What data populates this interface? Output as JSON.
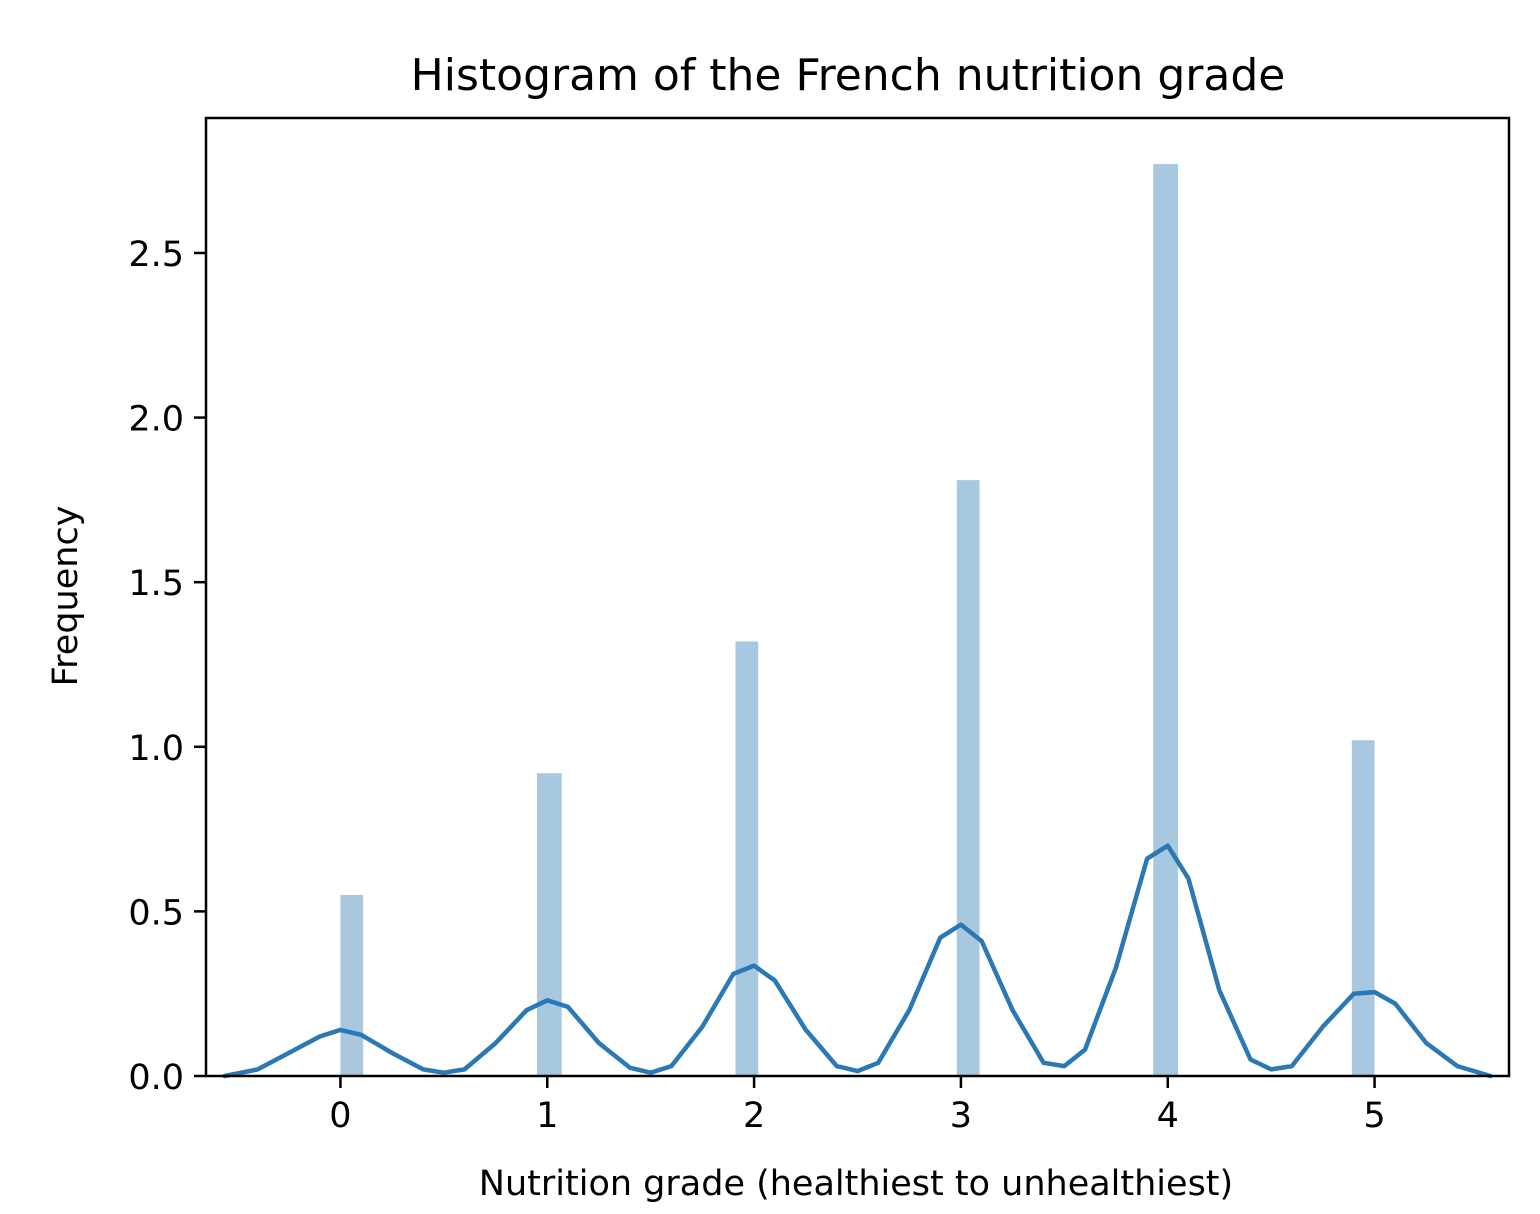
{
  "chart_data": {
    "type": "bar",
    "title": "Histogram of the French nutrition grade",
    "xlabel": "Nutrition grade (healthiest to unhealthiest)",
    "ylabel": "Frequency",
    "xlim": [
      -0.65,
      5.65
    ],
    "ylim": [
      0,
      2.91
    ],
    "xticks": [
      0,
      1,
      2,
      3,
      4,
      5
    ],
    "xtick_labels": [
      "0",
      "1",
      "2",
      "3",
      "4",
      "5"
    ],
    "yticks": [
      0,
      0.5,
      1.0,
      1.5,
      2.0,
      2.5
    ],
    "ytick_labels": [
      "0.0",
      "0.5",
      "1.0",
      "1.5",
      "2.0",
      "2.5"
    ],
    "grid": false,
    "colors": {
      "bars": "#a8c8e0",
      "kde": "#2a78b4"
    },
    "bars": [
      {
        "x0": 0.0,
        "x1": 0.11,
        "height": 0.55
      },
      {
        "x0": 0.95,
        "x1": 1.07,
        "height": 0.92
      },
      {
        "x0": 1.91,
        "x1": 2.02,
        "height": 1.32
      },
      {
        "x0": 2.98,
        "x1": 3.09,
        "height": 1.81
      },
      {
        "x0": 3.93,
        "x1": 4.05,
        "height": 2.77
      },
      {
        "x0": 4.89,
        "x1": 5.0,
        "height": 1.02
      }
    ],
    "kde": {
      "x": [
        -0.56,
        -0.4,
        -0.25,
        -0.1,
        0.0,
        0.1,
        0.25,
        0.4,
        0.5,
        0.6,
        0.75,
        0.9,
        1.0,
        1.1,
        1.25,
        1.4,
        1.5,
        1.6,
        1.75,
        1.9,
        2.0,
        2.1,
        2.25,
        2.4,
        2.5,
        2.6,
        2.75,
        2.9,
        3.0,
        3.1,
        3.25,
        3.4,
        3.5,
        3.6,
        3.75,
        3.9,
        4.0,
        4.1,
        4.25,
        4.4,
        4.5,
        4.6,
        4.75,
        4.9,
        5.0,
        5.1,
        5.25,
        5.4,
        5.56
      ],
      "y": [
        0.0,
        0.02,
        0.07,
        0.12,
        0.14,
        0.125,
        0.07,
        0.02,
        0.01,
        0.02,
        0.1,
        0.2,
        0.23,
        0.21,
        0.1,
        0.025,
        0.01,
        0.03,
        0.15,
        0.31,
        0.335,
        0.29,
        0.14,
        0.03,
        0.015,
        0.04,
        0.2,
        0.42,
        0.46,
        0.41,
        0.2,
        0.04,
        0.03,
        0.08,
        0.33,
        0.66,
        0.7,
        0.6,
        0.26,
        0.05,
        0.02,
        0.03,
        0.15,
        0.25,
        0.255,
        0.22,
        0.1,
        0.03,
        0.0
      ]
    }
  }
}
